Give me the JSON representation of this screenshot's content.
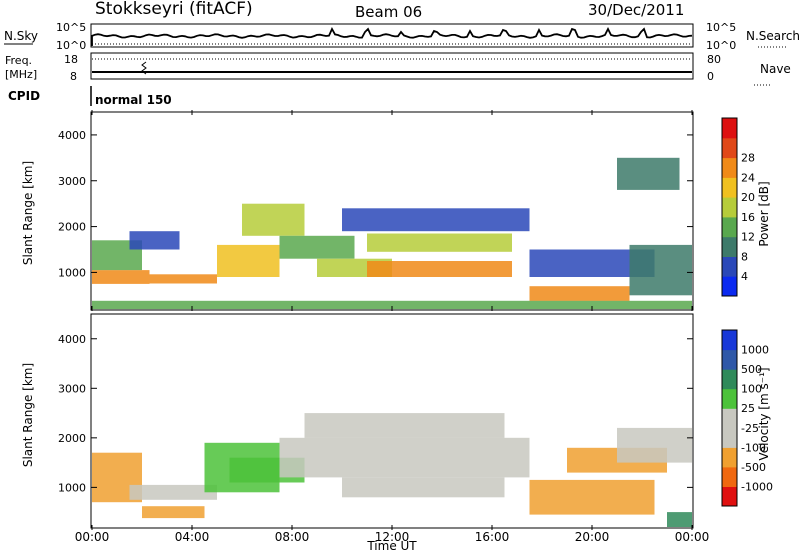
{
  "header": {
    "station": "Stokkseyri (fitACF)",
    "beam": "Beam 06",
    "date": "30/Dec/2011"
  },
  "left_labels": {
    "nsky": "N.Sky",
    "freq": "Freq.",
    "mhz": "[MHz]",
    "cpid": "CPID"
  },
  "right_labels": {
    "nsearch": "N.Search",
    "nave": "Nave"
  },
  "noise_axis": {
    "top_left": "10^5",
    "bottom_left": "10^0",
    "top_right": "10^5",
    "bottom_right": "10^0"
  },
  "freq_axis": {
    "top": "18",
    "bottom": "8"
  },
  "nave_axis": {
    "top": "80",
    "bottom": "0"
  },
  "cpid_text": "normal 150",
  "x_axis": {
    "label": "Time UT",
    "ticks": [
      "00:00",
      "04:00",
      "08:00",
      "12:00",
      "16:00",
      "20:00",
      "00:00"
    ]
  },
  "chart_data": [
    {
      "type": "heatmap",
      "name": "power",
      "xlabel": "Time UT",
      "ylabel": "Slant Range [km]",
      "xlim_hours": [
        0,
        24
      ],
      "ylim": [
        180,
        4500
      ],
      "y_ticks": [
        "1000",
        "2000",
        "3000",
        "4000"
      ],
      "colorbar": {
        "label": "Power [dB]",
        "ticks": [
          "4",
          "8",
          "12",
          "16",
          "20",
          "24",
          "28"
        ],
        "colors": [
          "#0b2af0",
          "#2a48b8",
          "#3d7a6a",
          "#59a84e",
          "#b6cc3a",
          "#f0c020",
          "#f08a18",
          "#e04818",
          "#dd1010"
        ]
      },
      "regions": [
        {
          "t0": 0.0,
          "t1": 2.3,
          "r0": 750,
          "r1": 1050,
          "value": 26
        },
        {
          "t0": 2.3,
          "t1": 5.0,
          "r0": 760,
          "r1": 960,
          "value": 27
        },
        {
          "t0": 0.0,
          "t1": 2.0,
          "r0": 1050,
          "r1": 1700,
          "value": 16
        },
        {
          "t0": 1.5,
          "t1": 3.5,
          "r0": 1500,
          "r1": 1900,
          "value": 8
        },
        {
          "t0": 5.0,
          "t1": 7.5,
          "r0": 900,
          "r1": 1600,
          "value": 22
        },
        {
          "t0": 6.0,
          "t1": 8.5,
          "r0": 1800,
          "r1": 2500,
          "value": 20
        },
        {
          "t0": 7.5,
          "t1": 10.5,
          "r0": 1300,
          "r1": 1800,
          "value": 14
        },
        {
          "t0": 9.0,
          "t1": 12.0,
          "r0": 900,
          "r1": 1300,
          "value": 18
        },
        {
          "t0": 11.0,
          "t1": 16.8,
          "r0": 900,
          "r1": 1250,
          "value": 27
        },
        {
          "t0": 11.0,
          "t1": 16.8,
          "r0": 1450,
          "r1": 1850,
          "value": 20
        },
        {
          "t0": 10.0,
          "t1": 17.5,
          "r0": 1900,
          "r1": 2400,
          "value": 6
        },
        {
          "t0": 17.5,
          "t1": 21.5,
          "r0": 380,
          "r1": 700,
          "value": 27
        },
        {
          "t0": 17.5,
          "t1": 22.5,
          "r0": 900,
          "r1": 1500,
          "value": 8
        },
        {
          "t0": 21.5,
          "t1": 24.0,
          "r0": 500,
          "r1": 1600,
          "value": 12
        },
        {
          "t0": 21.0,
          "t1": 23.5,
          "r0": 2800,
          "r1": 3500,
          "value": 10
        },
        {
          "t0": 0.0,
          "t1": 24.0,
          "r0": 200,
          "r1": 380,
          "value": 14
        }
      ]
    },
    {
      "type": "heatmap",
      "name": "velocity",
      "xlabel": "Time UT",
      "ylabel": "Slant Range [km]",
      "xlim_hours": [
        0,
        24
      ],
      "ylim": [
        180,
        4500
      ],
      "y_ticks": [
        "1000",
        "2000",
        "3000",
        "4000"
      ],
      "colorbar": {
        "label": "Velocity [m s⁻¹]",
        "ticks": [
          "1000",
          "500",
          "100",
          "25",
          "-25",
          "-100",
          "-500",
          "-1000"
        ],
        "colors": [
          "#1838d8",
          "#2f58a8",
          "#2f8a5a",
          "#4cc23a",
          "#c8c8c0",
          "#c8c8c0",
          "#f0a030",
          "#f06810",
          "#e01010"
        ]
      },
      "regions": [
        {
          "t0": 0.0,
          "t1": 2.0,
          "r0": 700,
          "r1": 1700,
          "value": -300
        },
        {
          "t0": 1.5,
          "t1": 5.0,
          "r0": 750,
          "r1": 1050,
          "value": 0
        },
        {
          "t0": 2.0,
          "t1": 4.5,
          "r0": 380,
          "r1": 620,
          "value": -250
        },
        {
          "t0": 4.5,
          "t1": 7.5,
          "r0": 900,
          "r1": 1900,
          "value": 60
        },
        {
          "t0": 5.5,
          "t1": 8.5,
          "r0": 1100,
          "r1": 1600,
          "value": 40
        },
        {
          "t0": 7.5,
          "t1": 17.5,
          "r0": 1200,
          "r1": 2000,
          "value": 0
        },
        {
          "t0": 8.5,
          "t1": 16.5,
          "r0": 2000,
          "r1": 2500,
          "value": 0
        },
        {
          "t0": 10.0,
          "t1": 16.5,
          "r0": 800,
          "r1": 1200,
          "value": 0
        },
        {
          "t0": 17.5,
          "t1": 22.5,
          "r0": 450,
          "r1": 1150,
          "value": -400
        },
        {
          "t0": 19.0,
          "t1": 23.0,
          "r0": 1300,
          "r1": 1800,
          "value": -200
        },
        {
          "t0": 21.0,
          "t1": 24.0,
          "r0": 1500,
          "r1": 2200,
          "value": 0
        },
        {
          "t0": 23.0,
          "t1": 24.0,
          "r0": 200,
          "r1": 500,
          "value": 200
        }
      ]
    }
  ]
}
